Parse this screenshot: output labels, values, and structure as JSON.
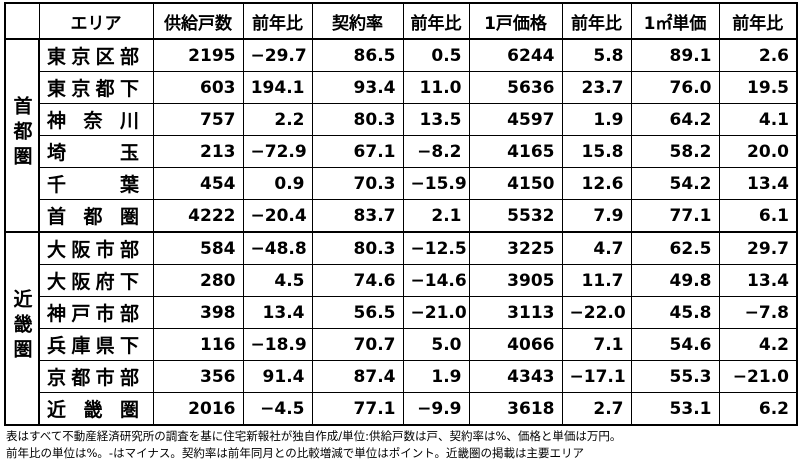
{
  "table": {
    "header": [
      "エリア",
      "供給戸数",
      "前年比",
      "契約率",
      "前年比",
      "1戸価格",
      "前年比",
      "1㎡単価",
      "前年比"
    ],
    "groups": [
      {
        "label": "首都圏",
        "rows": [
          [
            "東京区部",
            "2195",
            "−29.7",
            "86.5",
            "0.5",
            "6244",
            "5.8",
            "89.1",
            "2.6"
          ],
          [
            "東京都下",
            "603",
            "194.1",
            "93.4",
            "11.0",
            "5636",
            "23.7",
            "76.0",
            "19.5"
          ],
          [
            "神奈川",
            "757",
            "2.2",
            "80.3",
            "13.5",
            "4597",
            "1.9",
            "64.2",
            "4.1"
          ],
          [
            "埼玉",
            "213",
            "−72.9",
            "67.1",
            "−8.2",
            "4165",
            "15.8",
            "58.2",
            "20.0"
          ],
          [
            "千葉",
            "454",
            "0.9",
            "70.3",
            "−15.9",
            "4150",
            "12.6",
            "54.2",
            "13.4"
          ],
          [
            "首都圏",
            "4222",
            "−20.4",
            "83.7",
            "2.1",
            "5532",
            "7.9",
            "77.1",
            "6.1"
          ]
        ]
      },
      {
        "label": "近畿圏",
        "rows": [
          [
            "大阪市部",
            "584",
            "−48.8",
            "80.3",
            "−12.5",
            "3225",
            "4.7",
            "62.5",
            "29.7"
          ],
          [
            "大阪府下",
            "280",
            "4.5",
            "74.6",
            "−14.6",
            "3905",
            "11.7",
            "49.8",
            "13.4"
          ],
          [
            "神戸市部",
            "398",
            "13.4",
            "56.5",
            "−21.0",
            "3113",
            "−22.0",
            "45.8",
            "−7.8"
          ],
          [
            "兵庫県下",
            "116",
            "−18.9",
            "70.7",
            "5.0",
            "4066",
            "7.1",
            "54.6",
            "4.2"
          ],
          [
            "京都市部",
            "356",
            "91.4",
            "87.4",
            "1.9",
            "4343",
            "−17.1",
            "55.3",
            "−21.0"
          ],
          [
            "近畿圏",
            "2016",
            "−4.5",
            "77.1",
            "−9.9",
            "3618",
            "2.7",
            "53.1",
            "6.2"
          ]
        ]
      }
    ],
    "notes": [
      "表はすべて不動産経済研究所の調査を基に住宅新報社が独自作成/単位:供給戸数は戸、契約率は%、価格と単価は万円。",
      "前年比の単位は%。-はマイナス。契約率は前年同月との比較増減で単位はポイント。近畿圏の掲載は主要エリア"
    ]
  }
}
